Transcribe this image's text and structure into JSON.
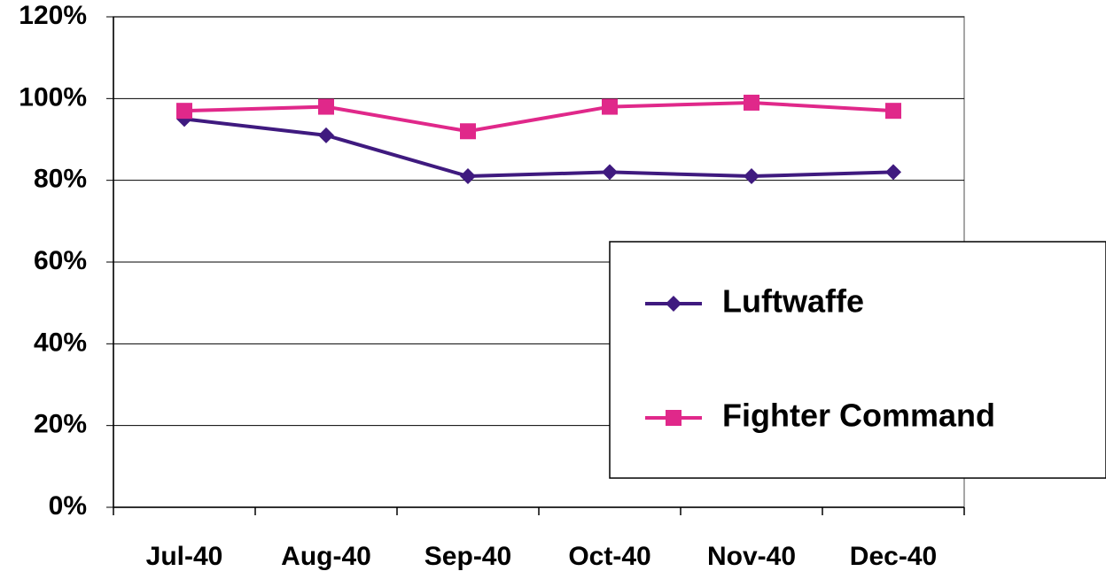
{
  "chart_data": {
    "type": "line",
    "categories": [
      "Jul-40",
      "Aug-40",
      "Sep-40",
      "Oct-40",
      "Nov-40",
      "Dec-40"
    ],
    "series": [
      {
        "name": "Luftwaffe",
        "color": "#3f1a7f",
        "marker": "diamond",
        "values": [
          95,
          91,
          81,
          82,
          81,
          82
        ]
      },
      {
        "name": "Fighter Command",
        "color": "#e0288a",
        "marker": "square",
        "values": [
          97,
          98,
          92,
          98,
          99,
          97
        ]
      }
    ],
    "ylim": [
      0,
      120
    ],
    "yticks": [
      {
        "value": 0,
        "label": "0%"
      },
      {
        "value": 20,
        "label": "20%"
      },
      {
        "value": 40,
        "label": "40%"
      },
      {
        "value": 60,
        "label": "60%"
      },
      {
        "value": 80,
        "label": "80%"
      },
      {
        "value": 100,
        "label": "100%"
      },
      {
        "value": 120,
        "label": "120%"
      }
    ],
    "grid": true,
    "legend": "right"
  }
}
